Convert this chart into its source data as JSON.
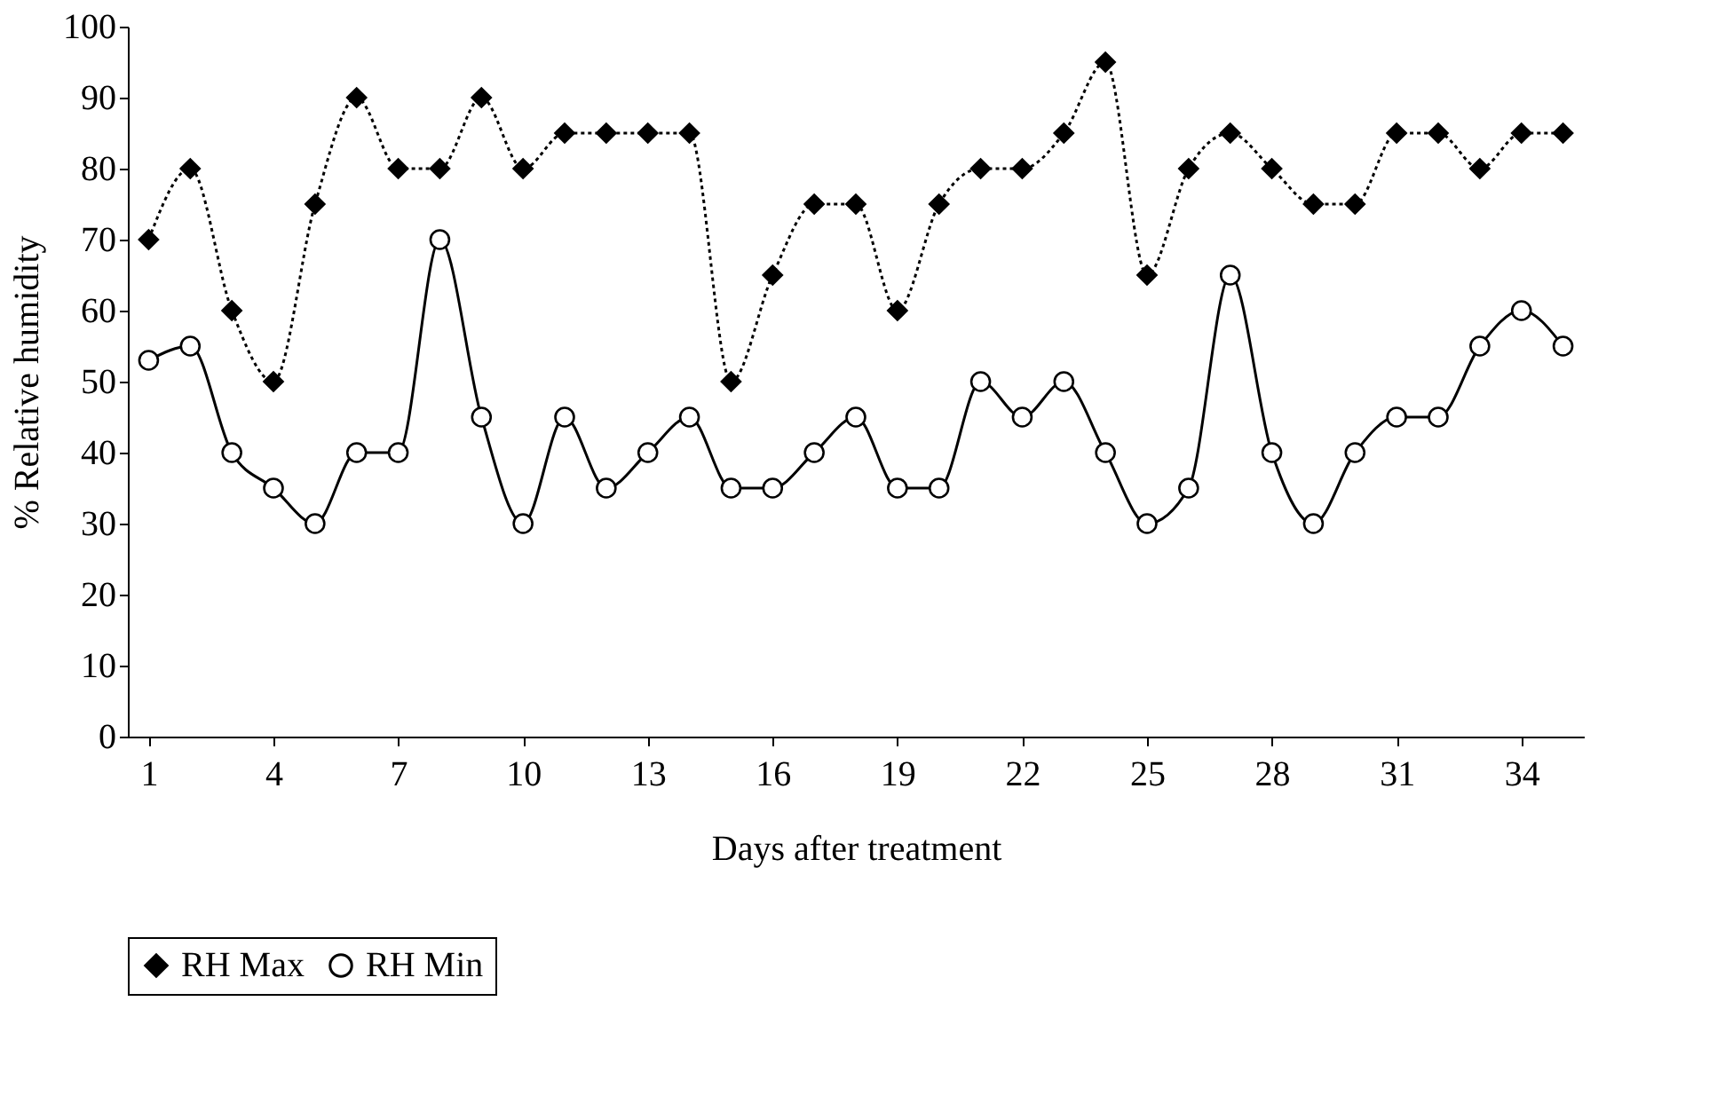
{
  "chart_data": {
    "type": "line",
    "xlabel": "Days after treatment",
    "ylabel": "% Relative humidity",
    "x": [
      1,
      2,
      3,
      4,
      5,
      6,
      7,
      8,
      9,
      10,
      11,
      12,
      13,
      14,
      15,
      16,
      17,
      18,
      19,
      20,
      21,
      22,
      23,
      24,
      25,
      26,
      27,
      28,
      29,
      30,
      31,
      32,
      33,
      34,
      35
    ],
    "series": [
      {
        "name": "RH Max",
        "color": "#000000",
        "marker": "diamond",
        "line_style": "dotted",
        "values": [
          70,
          80,
          60,
          50,
          75,
          90,
          80,
          80,
          90,
          80,
          85,
          85,
          85,
          85,
          50,
          65,
          75,
          75,
          60,
          75,
          80,
          80,
          85,
          95,
          65,
          80,
          85,
          80,
          75,
          75,
          85,
          85,
          80,
          85,
          85
        ]
      },
      {
        "name": "RH Min",
        "color": "#000000",
        "marker": "circle",
        "line_style": "solid",
        "values": [
          53,
          55,
          40,
          35,
          30,
          40,
          40,
          70,
          45,
          30,
          45,
          35,
          40,
          45,
          35,
          35,
          40,
          45,
          35,
          35,
          50,
          45,
          50,
          40,
          30,
          35,
          65,
          40,
          30,
          40,
          45,
          45,
          55,
          60,
          55
        ]
      }
    ],
    "xlim": [
      0.5,
      35.5
    ],
    "xticks": [
      1,
      4,
      7,
      10,
      13,
      16,
      19,
      22,
      25,
      28,
      31,
      34
    ],
    "ylim": [
      0,
      100
    ],
    "yticks": [
      0,
      10,
      20,
      30,
      40,
      50,
      60,
      70,
      80,
      90,
      100
    ],
    "grid": false,
    "legend": "bottom"
  }
}
